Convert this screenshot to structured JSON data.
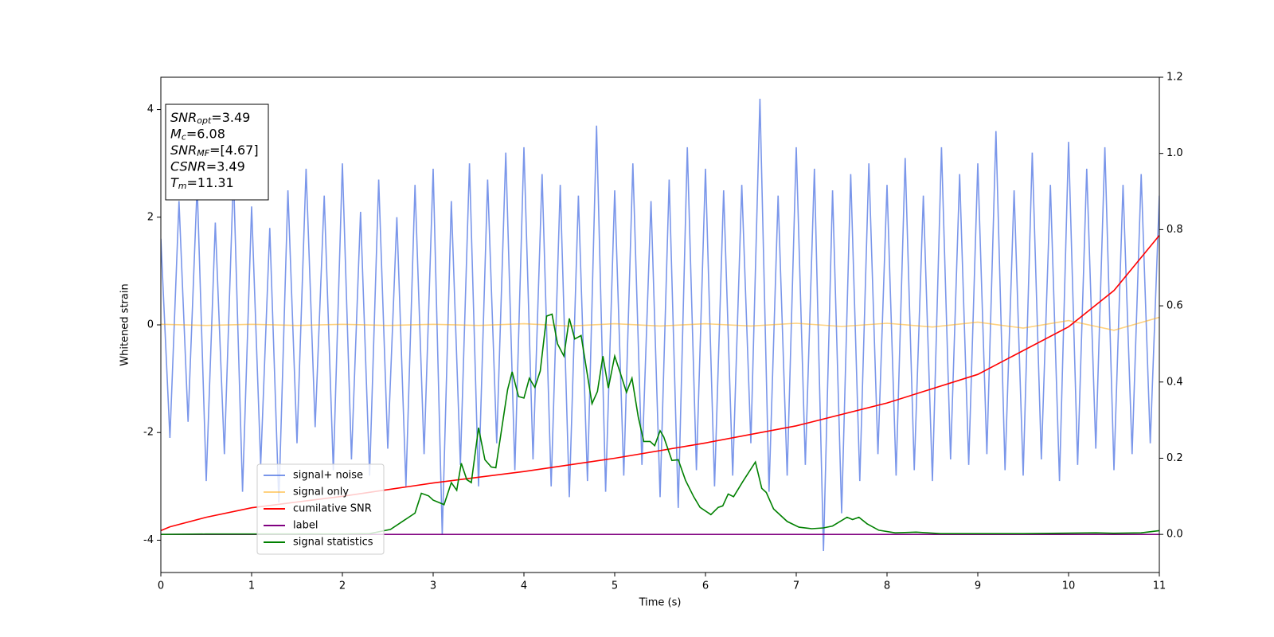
{
  "chart_data": {
    "type": "line",
    "xlabel": "Time (s)",
    "ylabel": "Whitened strain",
    "xlim": [
      0,
      11
    ],
    "ylim": [
      -4.6,
      4.6
    ],
    "y2lim": [
      -0.1,
      1.2
    ],
    "xticks": [
      0,
      1,
      2,
      3,
      4,
      5,
      6,
      7,
      8,
      9,
      10,
      11
    ],
    "yticks": [
      -4,
      -2,
      0,
      2,
      4
    ],
    "y2ticks": [
      {
        "value": 0,
        "label": "0.0"
      },
      0.2,
      0.4,
      0.6,
      0.8,
      {
        "value": 1,
        "label": "1.0"
      },
      1.2
    ],
    "legend": "lower left",
    "annotation": [
      {
        "main": "SNR",
        "sub": "opt",
        "rest": "=3.49"
      },
      {
        "main": "M",
        "sub": "c",
        "rest": "=6.08"
      },
      {
        "main": "SNR",
        "sub": "MF",
        "rest": "=[4.67]"
      },
      {
        "main": "CSNR",
        "rest": "=3.49"
      },
      {
        "main": "T",
        "sub": "m",
        "rest": "=11.31"
      }
    ],
    "series": [
      {
        "name": "signal+ noise",
        "color": "#4169e1",
        "alpha": 0.7,
        "x": [
          0,
          0.1,
          0.2,
          0.3,
          0.4,
          0.5,
          0.6,
          0.7,
          0.8,
          0.9,
          1,
          1.1,
          1.2,
          1.3,
          1.4,
          1.5,
          1.6,
          1.7,
          1.8,
          1.9,
          2,
          2.1,
          2.2,
          2.3,
          2.4,
          2.5,
          2.6,
          2.7,
          2.8,
          2.9,
          3,
          3.1,
          3.2,
          3.3,
          3.4,
          3.5,
          3.6,
          3.7,
          3.8,
          3.9,
          4,
          4.1,
          4.2,
          4.3,
          4.4,
          4.5,
          4.6,
          4.7,
          4.8,
          4.9,
          5,
          5.1,
          5.2,
          5.3,
          5.4,
          5.5,
          5.6,
          5.7,
          5.8,
          5.9,
          6,
          6.1,
          6.2,
          6.3,
          6.4,
          6.5,
          6.6,
          6.7,
          6.8,
          6.9,
          7,
          7.1,
          7.2,
          7.3,
          7.4,
          7.5,
          7.6,
          7.7,
          7.8,
          7.9,
          8,
          8.1,
          8.2,
          8.3,
          8.4,
          8.5,
          8.6,
          8.7,
          8.8,
          8.9,
          9,
          9.1,
          9.2,
          9.3,
          9.4,
          9.5,
          9.6,
          9.7,
          9.8,
          9.9,
          10,
          10.1,
          10.2,
          10.3,
          10.4,
          10.5,
          10.6,
          10.7,
          10.8,
          10.9,
          11
        ],
        "values": [
          1.6,
          -2.1,
          2.3,
          -1.8,
          2.6,
          -2.9,
          1.9,
          -2.4,
          2.8,
          -3.1,
          2.2,
          -2.6,
          1.8,
          -3.3,
          2.5,
          -2.2,
          2.9,
          -1.9,
          2.4,
          -2.7,
          3.0,
          -2.5,
          2.1,
          -2.8,
          2.7,
          -2.3,
          2.0,
          -3.0,
          2.6,
          -2.4,
          2.9,
          -3.9,
          2.3,
          -2.6,
          3.0,
          -3.0,
          2.7,
          -2.2,
          3.2,
          -2.7,
          3.3,
          -2.5,
          2.8,
          -3.0,
          2.6,
          -3.2,
          2.4,
          -2.9,
          3.7,
          -3.1,
          2.5,
          -2.8,
          3.0,
          -2.6,
          2.3,
          -3.2,
          2.7,
          -3.4,
          3.3,
          -2.7,
          2.9,
          -3.0,
          2.5,
          -2.8,
          2.6,
          -2.2,
          4.2,
          -3.1,
          2.4,
          -2.8,
          3.3,
          -2.6,
          2.9,
          -4.2,
          2.5,
          -3.5,
          2.8,
          -2.9,
          3.0,
          -2.4,
          2.6,
          -2.8,
          3.1,
          -2.7,
          2.4,
          -2.9,
          3.3,
          -2.5,
          2.8,
          -2.6,
          3.0,
          -2.4,
          3.6,
          -2.7,
          2.5,
          -2.8,
          3.2,
          -2.5,
          2.6,
          -2.9,
          3.4,
          -2.6,
          2.9,
          -2.3,
          3.3,
          -2.7,
          2.6,
          -2.4,
          2.8,
          -2.2,
          2.4
        ]
      },
      {
        "name": "signal only",
        "color": "#ffa500",
        "alpha": 0.5,
        "x": [
          0,
          0.5,
          1,
          1.5,
          2,
          2.5,
          3,
          3.5,
          4,
          4.5,
          5,
          5.5,
          6,
          6.5,
          7,
          7.5,
          8,
          8.5,
          9,
          9.5,
          10,
          10.5,
          11
        ],
        "values": [
          0.01,
          -0.01,
          0.01,
          -0.01,
          0.01,
          -0.01,
          0.01,
          -0.01,
          0.02,
          -0.02,
          0.02,
          -0.02,
          0.02,
          -0.02,
          0.03,
          -0.03,
          0.03,
          -0.04,
          0.05,
          -0.06,
          0.08,
          -0.1,
          0.14
        ]
      },
      {
        "name": "cumilative SNR",
        "color": "#ff0000",
        "axis": "y2",
        "x": [
          0,
          0.1,
          0.5,
          1,
          2,
          3,
          4,
          5,
          6,
          7,
          8,
          9,
          10,
          10.5,
          11
        ],
        "values": [
          0.01,
          0.02,
          0.045,
          0.07,
          0.1,
          0.135,
          0.165,
          0.2,
          0.24,
          0.285,
          0.345,
          0.42,
          0.545,
          0.64,
          0.785
        ]
      },
      {
        "name": "label",
        "color": "#800080",
        "axis": "y2",
        "x": [
          0,
          11
        ],
        "values": [
          0,
          0
        ]
      },
      {
        "name": "signal statistics",
        "color": "#008000",
        "axis": "y2",
        "x": [
          0,
          0.5,
          2,
          2.3,
          2.53,
          2.8,
          2.87,
          2.95,
          3,
          3.12,
          3.2,
          3.26,
          3.31,
          3.37,
          3.42,
          3.5,
          3.57,
          3.64,
          3.69,
          3.82,
          3.87,
          3.94,
          4,
          4.06,
          4.12,
          4.18,
          4.25,
          4.31,
          4.37,
          4.44,
          4.5,
          4.56,
          4.63,
          4.75,
          4.81,
          4.87,
          4.93,
          5,
          5.06,
          5.13,
          5.19,
          5.26,
          5.32,
          5.39,
          5.44,
          5.5,
          5.54,
          5.63,
          5.7,
          5.78,
          5.87,
          5.94,
          6.06,
          6.14,
          6.19,
          6.25,
          6.31,
          6.41,
          6.55,
          6.62,
          6.67,
          6.75,
          6.9,
          7.03,
          7.17,
          7.3,
          7.4,
          7.56,
          7.62,
          7.69,
          7.78,
          7.91,
          8.09,
          8.32,
          8.59,
          9.5,
          10.3,
          10.5,
          10.8,
          11
        ],
        "values": [
          0,
          0.001,
          0.001,
          0.002,
          0.013,
          0.056,
          0.108,
          0.101,
          0.09,
          0.078,
          0.136,
          0.116,
          0.187,
          0.144,
          0.136,
          0.28,
          0.196,
          0.177,
          0.175,
          0.38,
          0.427,
          0.362,
          0.358,
          0.41,
          0.386,
          0.429,
          0.573,
          0.578,
          0.5,
          0.468,
          0.567,
          0.513,
          0.522,
          0.343,
          0.375,
          0.468,
          0.384,
          0.468,
          0.425,
          0.373,
          0.41,
          0.308,
          0.244,
          0.244,
          0.233,
          0.272,
          0.256,
          0.194,
          0.196,
          0.142,
          0.099,
          0.071,
          0.052,
          0.071,
          0.075,
          0.106,
          0.099,
          0.138,
          0.19,
          0.121,
          0.11,
          0.067,
          0.034,
          0.019,
          0.015,
          0.017,
          0.022,
          0.045,
          0.039,
          0.045,
          0.028,
          0.011,
          0.004,
          0.006,
          0.002,
          0.002,
          0.004,
          0.003,
          0.004,
          0.01
        ]
      }
    ]
  }
}
